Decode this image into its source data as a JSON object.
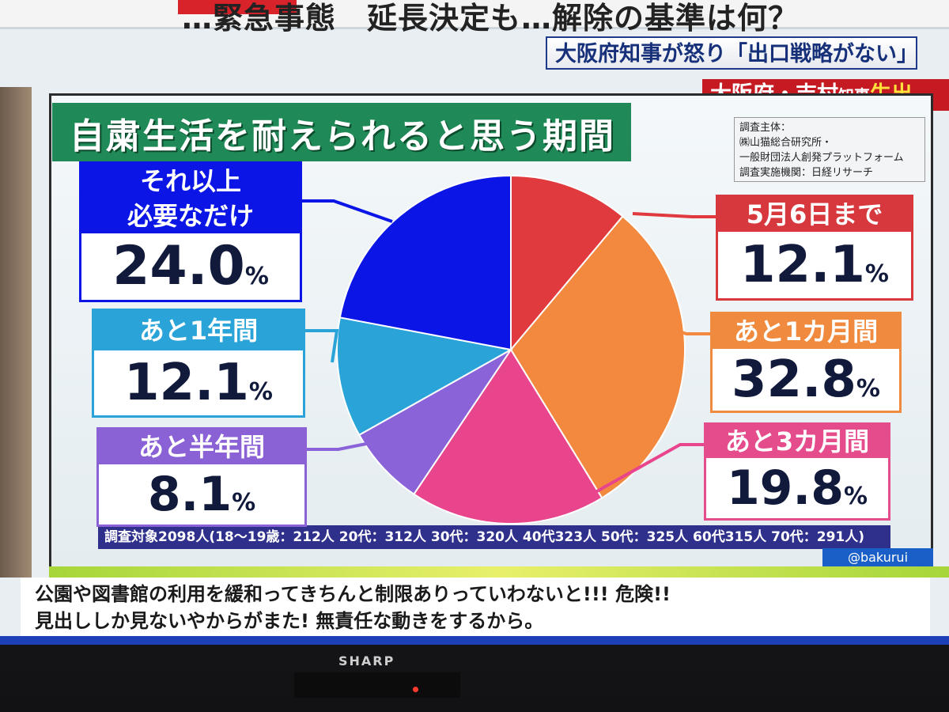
{
  "headline": {
    "text": "…緊急事態　延長決定も…解除の基準は何？",
    "sub_banner": "大阪府知事が怒り「出口戦略がない」",
    "sub_banner2_a": "大阪府・吉村",
    "sub_banner2_b": "知事",
    "sub_banner2_c": "生出"
  },
  "survey": {
    "lines": [
      "調査主体：",
      "㈱山猫総合研究所・",
      "一般財団法人創発プラットフォーム",
      "調査実施機関：日経リサーチ"
    ]
  },
  "survey_target": "調査対象2098人(18～19歳：212人 20代：312人 30代：320人 40代323人 50代：325人 60代315人 70代：291人)",
  "watermark": "@bakurui",
  "caption": {
    "line1": "公園や図書館の利用を緩和ってきちんと制限ありっていわないと!!! 危険!!",
    "line2": "見出ししか見ないやからがまた! 無責任な動きをするから。"
  },
  "brand": "SHARP",
  "chart_data": {
    "type": "pie",
    "title": "自粛生活を耐えられると思う期間",
    "unit": "%",
    "slices": [
      {
        "label": "5月6日まで",
        "value": 12.1,
        "color": "#e0393e"
      },
      {
        "label": "あと1カ月間",
        "value": 32.8,
        "color": "#f2893f"
      },
      {
        "label": "あと3カ月間",
        "value": 19.8,
        "color": "#e8458c"
      },
      {
        "label": "あと半年間",
        "value": 8.1,
        "color": "#8b63d9"
      },
      {
        "label": "あと1年間",
        "value": 12.1,
        "color": "#2aa4d8"
      },
      {
        "label": "それ以上必要なだけ",
        "value": 24.0,
        "color": "#0b16e6"
      }
    ],
    "value_labels": [
      "12.1",
      "32.8",
      "19.8",
      "8.1",
      "12.1",
      "24.0"
    ],
    "label_lines": [
      [
        "5月6日まで"
      ],
      [
        "あと1カ月間"
      ],
      [
        "あと3カ月間"
      ],
      [
        "あと半年間"
      ],
      [
        "あと1年間"
      ],
      [
        "それ以上",
        "必要なだけ"
      ]
    ]
  }
}
